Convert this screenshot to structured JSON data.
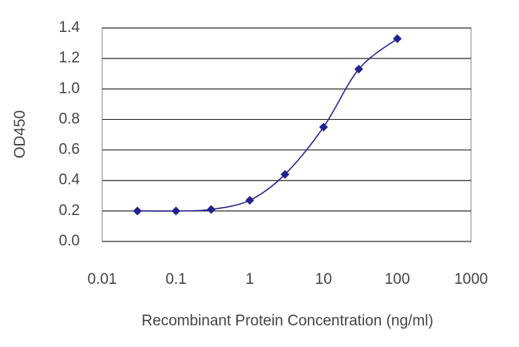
{
  "chart_data": {
    "type": "line",
    "x_label": "Recombinant Protein Concentration (ng/ml)",
    "y_label": "OD450",
    "x": [
      0.03,
      0.1,
      0.3,
      1,
      3,
      10,
      30,
      100
    ],
    "series": [
      {
        "color": "#23238e",
        "values": [
          0.2,
          0.2,
          0.21,
          0.27,
          0.44,
          0.75,
          1.13,
          1.33
        ]
      }
    ],
    "xscale": "log",
    "xlim": [
      0.01,
      1000
    ],
    "xticks": [
      0.01,
      0.1,
      1,
      10,
      100,
      1000
    ],
    "ylim": [
      0,
      1.4
    ],
    "yticks": [
      {
        "value": 0,
        "label": "0.0"
      },
      0.2,
      0.4,
      0.6,
      0.8,
      {
        "value": 1,
        "label": "1.0"
      },
      1.2,
      1.4
    ],
    "grid": true
  }
}
